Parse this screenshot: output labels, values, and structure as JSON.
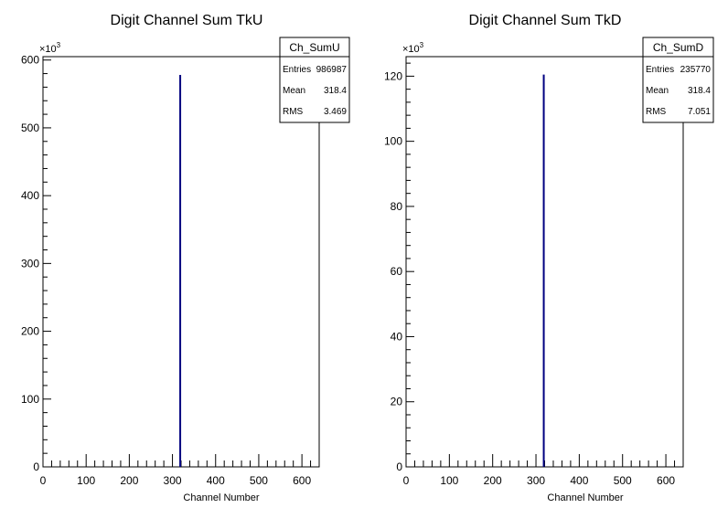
{
  "chart_data": [
    {
      "type": "bar",
      "title": "Digit Channel Sum TkU",
      "xlabel": "Channel Number",
      "ylabel": "",
      "xlim": [
        0,
        640
      ],
      "ylim": [
        0,
        605
      ],
      "y_multiplier_label": "×10³",
      "x_ticks": [
        "0",
        "100",
        "200",
        "300",
        "400",
        "500",
        "600"
      ],
      "y_ticks": [
        "0",
        "100",
        "200",
        "300",
        "400",
        "500",
        "600"
      ],
      "series": [
        {
          "x": [
            318
          ],
          "values": [
            578
          ]
        }
      ],
      "stats": {
        "name": "Ch_SumU",
        "rows": [
          {
            "label": "Entries",
            "value": "986987"
          },
          {
            "label": "Mean",
            "value": "318.4"
          },
          {
            "label": "RMS",
            "value": "3.469"
          }
        ]
      },
      "line_color": "#000080"
    },
    {
      "type": "bar",
      "title": "Digit Channel Sum TkD",
      "xlabel": "Channel Number",
      "ylabel": "",
      "xlim": [
        0,
        640
      ],
      "ylim": [
        0,
        126
      ],
      "y_multiplier_label": "×10³",
      "x_ticks": [
        "0",
        "100",
        "200",
        "300",
        "400",
        "500",
        "600"
      ],
      "y_ticks": [
        "0",
        "20",
        "40",
        "60",
        "80",
        "100",
        "120"
      ],
      "series": [
        {
          "x": [
            318
          ],
          "values": [
            120.5
          ]
        }
      ],
      "stats": {
        "name": "Ch_SumD",
        "rows": [
          {
            "label": "Entries",
            "value": "235770"
          },
          {
            "label": "Mean",
            "value": "318.4"
          },
          {
            "label": "RMS",
            "value": "7.051"
          }
        ]
      },
      "line_color": "#000080"
    }
  ]
}
